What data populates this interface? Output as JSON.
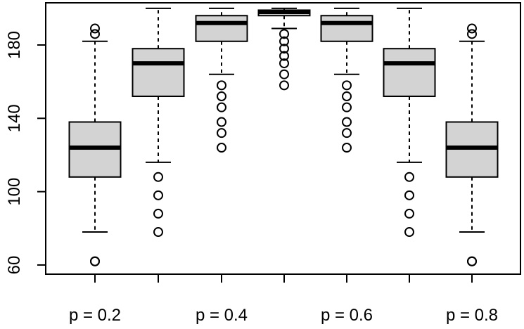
{
  "chart_data": {
    "type": "boxplot",
    "title": "",
    "xlabel": "",
    "ylabel": "",
    "ylim": [
      55,
      203
    ],
    "yticks": [
      60,
      100,
      140,
      180
    ],
    "grid": false,
    "colors": {
      "box_fill": "#d3d3d3",
      "stroke": "#000000"
    },
    "categories": [
      "p = 0.2",
      "",
      "p = 0.4",
      "",
      "p = 0.6",
      "",
      "p = 0.8"
    ],
    "boxes": [
      {
        "label": "p = 0.2",
        "lower_whisker": 78,
        "q1": 108,
        "median": 124,
        "q3": 138,
        "upper_whisker": 182,
        "outliers": [
          62,
          62,
          186,
          189
        ]
      },
      {
        "label": "",
        "lower_whisker": 116,
        "q1": 152,
        "median": 170,
        "q3": 178,
        "upper_whisker": 200,
        "outliers": [
          78,
          88,
          98,
          108
        ]
      },
      {
        "label": "p = 0.4",
        "lower_whisker": 164,
        "q1": 182,
        "median": 192,
        "q3": 196,
        "upper_whisker": 200,
        "outliers": [
          124,
          132,
          138,
          146,
          152,
          158
        ]
      },
      {
        "label": "",
        "lower_whisker": 189,
        "q1": 196,
        "median": 198,
        "q3": 199,
        "upper_whisker": 200,
        "outliers": [
          158,
          164,
          170,
          174,
          178,
          182,
          186
        ]
      },
      {
        "label": "p = 0.6",
        "lower_whisker": 164,
        "q1": 182,
        "median": 192,
        "q3": 196,
        "upper_whisker": 200,
        "outliers": [
          124,
          132,
          138,
          146,
          152,
          158
        ]
      },
      {
        "label": "",
        "lower_whisker": 116,
        "q1": 152,
        "median": 170,
        "q3": 178,
        "upper_whisker": 200,
        "outliers": [
          78,
          88,
          98,
          108
        ]
      },
      {
        "label": "p = 0.8",
        "lower_whisker": 78,
        "q1": 108,
        "median": 124,
        "q3": 138,
        "upper_whisker": 182,
        "outliers": [
          62,
          62,
          186,
          189
        ]
      }
    ]
  }
}
